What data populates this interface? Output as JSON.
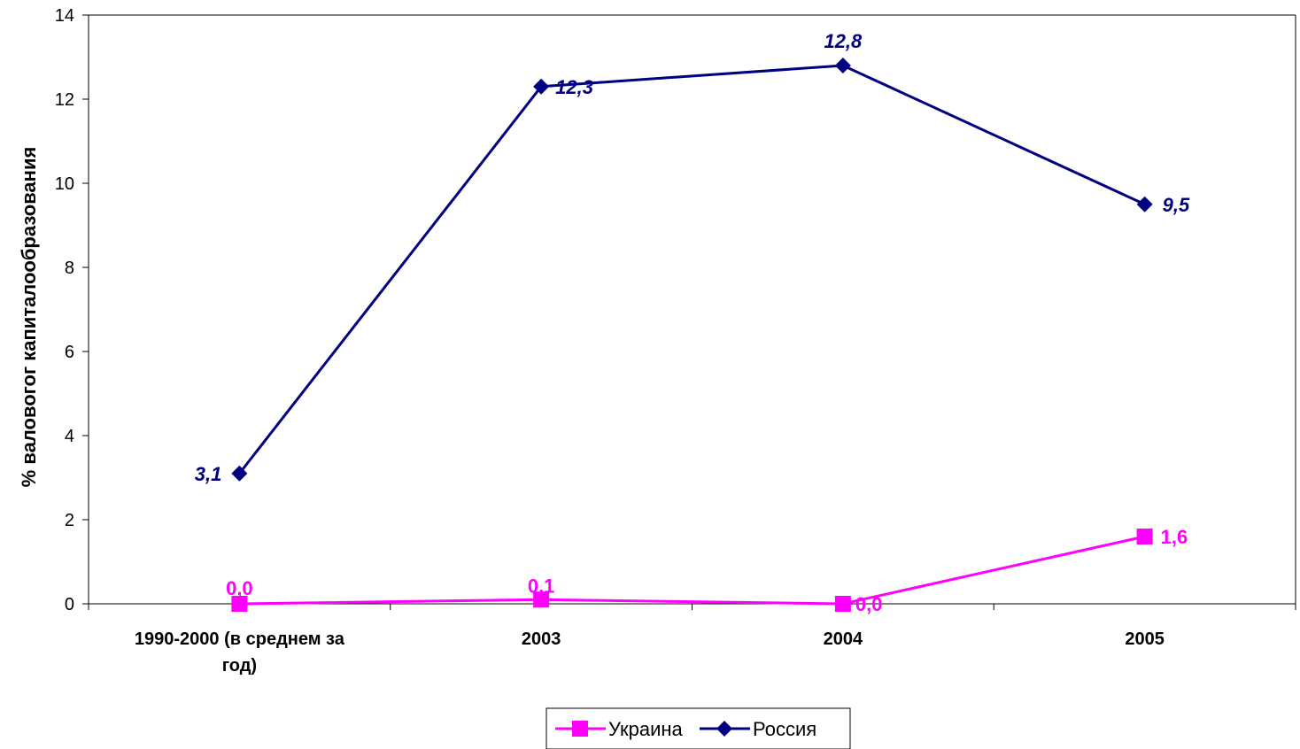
{
  "chart_data": {
    "type": "line",
    "categories": [
      "1990-2000 (в среднем за год)",
      "2003",
      "2004",
      "2005"
    ],
    "category_lines": [
      [
        "1990-2000 (в среднем за",
        "год)"
      ],
      [
        "2003"
      ],
      [
        "2004"
      ],
      [
        "2005"
      ]
    ],
    "ylabel": "% валовогог капиталообразования",
    "xlabel": "",
    "ylim": [
      0,
      14
    ],
    "yticks": [
      0,
      2,
      4,
      6,
      8,
      10,
      12,
      14
    ],
    "legend_position": "bottom",
    "grid": false,
    "series": [
      {
        "name": "Украина",
        "values": [
          0.0,
          0.1,
          0.0,
          1.6
        ],
        "labels": [
          "0,0",
          "0,1",
          "0,0",
          "1,6"
        ],
        "color": "#FF00FF",
        "marker": "square",
        "label_style": "bold"
      },
      {
        "name": "Россия",
        "values": [
          3.1,
          12.3,
          12.8,
          9.5
        ],
        "labels": [
          "3,1",
          "12,3",
          "12,8",
          "9,5"
        ],
        "color": "#000080",
        "marker": "diamond",
        "label_style": "bold-italic"
      }
    ]
  }
}
